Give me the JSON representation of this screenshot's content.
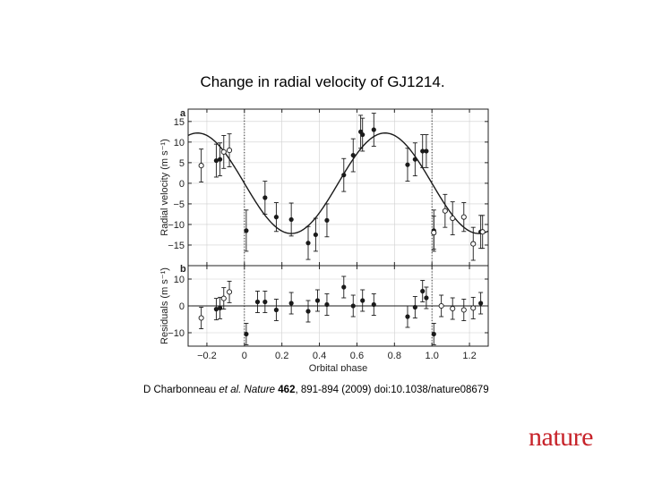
{
  "slide": {
    "title": "Change in radial velocity of GJ1214.",
    "citation": {
      "authors": "D Charbonneau",
      "etal": "et al.",
      "journal": "Nature",
      "volume": "462",
      "rest": ", 891-894 (2009) doi:10.1038/nature08679"
    },
    "logo": "nature"
  },
  "colors": {
    "axis": "#222222",
    "data": "#1a1a1a",
    "grid": "#cfcfcf",
    "logo": "#c7232a"
  },
  "chart_data": [
    {
      "type": "scatter",
      "panel_label": "a",
      "ylabel": "Radial velocity (m s⁻¹)",
      "xlim": [
        -0.3,
        1.3
      ],
      "ylim": [
        -20,
        18
      ],
      "yticks": [
        15,
        10,
        5,
        0,
        -5,
        -10,
        -15
      ],
      "ytick_labels": [
        "15",
        "10",
        "5",
        "0",
        "−5",
        "−10",
        "−15"
      ],
      "xticks": [
        -0.2,
        0,
        0.2,
        0.4,
        0.6,
        0.8,
        1.0,
        1.2
      ],
      "grid": true,
      "model": {
        "type": "sinusoid",
        "amplitude": 12.2,
        "phase_of_minimum": 0.25
      },
      "reference_lines_x": [
        0,
        1.0
      ],
      "series": [
        {
          "name": "filled",
          "marker": "filled-circle",
          "points": [
            {
              "x": -0.15,
              "y": 5.5,
              "err": 4
            },
            {
              "x": -0.13,
              "y": 5.8,
              "err": 4
            },
            {
              "x": 0.01,
              "y": -11.5,
              "err": 5
            },
            {
              "x": 0.11,
              "y": -3.5,
              "err": 4
            },
            {
              "x": 0.17,
              "y": -8.2,
              "err": 3.5
            },
            {
              "x": 0.25,
              "y": -8.8,
              "err": 4
            },
            {
              "x": 0.34,
              "y": -14.5,
              "err": 4
            },
            {
              "x": 0.38,
              "y": -12.5,
              "err": 4
            },
            {
              "x": 0.44,
              "y": -9.0,
              "err": 4
            },
            {
              "x": 0.53,
              "y": 2.0,
              "err": 4
            },
            {
              "x": 0.58,
              "y": 6.8,
              "err": 4
            },
            {
              "x": 0.62,
              "y": 12.5,
              "err": 4
            },
            {
              "x": 0.63,
              "y": 11.8,
              "err": 4
            },
            {
              "x": 0.69,
              "y": 13.0,
              "err": 4
            },
            {
              "x": 0.87,
              "y": 4.5,
              "err": 4
            },
            {
              "x": 0.91,
              "y": 5.8,
              "err": 4
            },
            {
              "x": 0.95,
              "y": 7.8,
              "err": 4
            },
            {
              "x": 0.97,
              "y": 7.8,
              "err": 4
            },
            {
              "x": 1.01,
              "y": -11.5,
              "err": 5
            },
            {
              "x": 1.26,
              "y": -11.8,
              "err": 4
            }
          ]
        },
        {
          "name": "open",
          "marker": "open-circle",
          "points": [
            {
              "x": -0.23,
              "y": 4.3,
              "err": 4
            },
            {
              "x": -0.11,
              "y": 7.6,
              "err": 4
            },
            {
              "x": -0.08,
              "y": 8.0,
              "err": 4
            },
            {
              "x": 1.01,
              "y": -12.0,
              "err": 4
            },
            {
              "x": 1.07,
              "y": -6.7,
              "err": 4
            },
            {
              "x": 1.11,
              "y": -8.5,
              "err": 4
            },
            {
              "x": 1.17,
              "y": -8.2,
              "err": 3.5
            },
            {
              "x": 1.22,
              "y": -14.7,
              "err": 4
            },
            {
              "x": 1.27,
              "y": -11.8,
              "err": 4
            }
          ]
        }
      ]
    },
    {
      "type": "scatter",
      "panel_label": "b",
      "ylabel": "Residuals (m s⁻¹)",
      "xlabel": "Orbital phase",
      "xlim": [
        -0.3,
        1.3
      ],
      "ylim": [
        -15,
        15
      ],
      "yticks": [
        10,
        0,
        -10
      ],
      "ytick_labels": [
        "10",
        "0",
        "−10"
      ],
      "xticks": [
        -0.2,
        0,
        0.2,
        0.4,
        0.6,
        0.8,
        1.0,
        1.2
      ],
      "xtick_labels": [
        "−0.2",
        "0",
        "0.2",
        "0.4",
        "0.6",
        "0.8",
        "1.0",
        "1.2"
      ],
      "grid": true,
      "zero_line": true,
      "reference_lines_x": [
        0,
        1.0
      ],
      "series": [
        {
          "name": "filled",
          "marker": "filled-circle",
          "points": [
            {
              "x": -0.15,
              "y": -1.2,
              "err": 4
            },
            {
              "x": -0.13,
              "y": -0.8,
              "err": 4
            },
            {
              "x": 0.01,
              "y": -10.5,
              "err": 4
            },
            {
              "x": 0.07,
              "y": 1.5,
              "err": 4
            },
            {
              "x": 0.11,
              "y": 1.5,
              "err": 4
            },
            {
              "x": 0.17,
              "y": -1.5,
              "err": 4
            },
            {
              "x": 0.25,
              "y": 1.0,
              "err": 4
            },
            {
              "x": 0.34,
              "y": -2.0,
              "err": 4
            },
            {
              "x": 0.39,
              "y": 2.0,
              "err": 4
            },
            {
              "x": 0.44,
              "y": 0.5,
              "err": 4
            },
            {
              "x": 0.53,
              "y": 7.0,
              "err": 4
            },
            {
              "x": 0.58,
              "y": 0.0,
              "err": 4
            },
            {
              "x": 0.63,
              "y": 2.0,
              "err": 4
            },
            {
              "x": 0.69,
              "y": 0.5,
              "err": 4
            },
            {
              "x": 0.87,
              "y": -4.0,
              "err": 4
            },
            {
              "x": 0.91,
              "y": -0.5,
              "err": 4
            },
            {
              "x": 0.95,
              "y": 5.5,
              "err": 4
            },
            {
              "x": 0.97,
              "y": 3.0,
              "err": 4
            },
            {
              "x": 1.01,
              "y": -10.5,
              "err": 4
            },
            {
              "x": 1.26,
              "y": 1.0,
              "err": 4
            }
          ]
        },
        {
          "name": "open",
          "marker": "open-circle",
          "points": [
            {
              "x": -0.23,
              "y": -4.5,
              "err": 4
            },
            {
              "x": -0.11,
              "y": 2.8,
              "err": 4
            },
            {
              "x": -0.08,
              "y": 5.2,
              "err": 4
            },
            {
              "x": 1.05,
              "y": 0.0,
              "err": 4
            },
            {
              "x": 1.11,
              "y": -1.0,
              "err": 4
            },
            {
              "x": 1.17,
              "y": -1.5,
              "err": 4
            },
            {
              "x": 1.22,
              "y": -0.8,
              "err": 4
            }
          ]
        }
      ]
    }
  ]
}
